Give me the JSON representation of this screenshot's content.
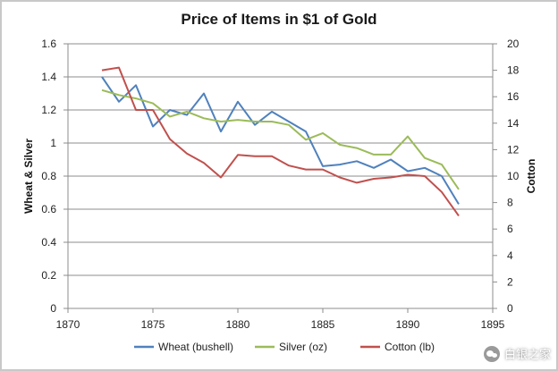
{
  "chart_data": {
    "type": "line",
    "title": "Price of Items in $1 of Gold",
    "ylabel_left": "Wheat & Silver",
    "ylabel_right": "Cotton",
    "xlim": [
      1870,
      1895
    ],
    "xticks": [
      1870,
      1875,
      1880,
      1885,
      1890,
      1895
    ],
    "ylim_left": [
      0,
      1.6
    ],
    "yticks_left": [
      "0",
      "0.2",
      "0.4",
      "0.6",
      "0.8",
      "1",
      "1.2",
      "1.4",
      "1.6"
    ],
    "ylim_right": [
      0,
      20
    ],
    "yticks_right": [
      "0",
      "2",
      "4",
      "6",
      "8",
      "10",
      "12",
      "14",
      "16",
      "18",
      "20"
    ],
    "grid": "horizontal",
    "legend_position": "bottom",
    "series": [
      {
        "name": "Wheat (bushell)",
        "axis": "left",
        "color": "#4f81bd",
        "x": [
          1872,
          1873,
          1874,
          1875,
          1876,
          1877,
          1878,
          1879,
          1880,
          1881,
          1882,
          1883,
          1884,
          1885,
          1886,
          1887,
          1888,
          1889,
          1890,
          1891,
          1892,
          1893
        ],
        "values": [
          1.4,
          1.25,
          1.35,
          1.1,
          1.2,
          1.17,
          1.3,
          1.07,
          1.25,
          1.11,
          1.19,
          1.13,
          1.07,
          0.86,
          0.87,
          0.89,
          0.85,
          0.9,
          0.83,
          0.85,
          0.8,
          0.63
        ]
      },
      {
        "name": "Silver (oz)",
        "axis": "left",
        "color": "#9bbb59",
        "x": [
          1872,
          1873,
          1874,
          1875,
          1876,
          1877,
          1878,
          1879,
          1880,
          1881,
          1882,
          1883,
          1884,
          1885,
          1886,
          1887,
          1888,
          1889,
          1890,
          1891,
          1892,
          1893
        ],
        "values": [
          1.32,
          1.29,
          1.27,
          1.24,
          1.16,
          1.19,
          1.15,
          1.13,
          1.14,
          1.13,
          1.13,
          1.11,
          1.02,
          1.06,
          0.99,
          0.97,
          0.93,
          0.93,
          1.04,
          0.91,
          0.87,
          0.72
        ]
      },
      {
        "name": "Cotton (lb)",
        "axis": "right",
        "color": "#c0504d",
        "x": [
          1872,
          1873,
          1874,
          1875,
          1876,
          1877,
          1878,
          1879,
          1880,
          1881,
          1882,
          1883,
          1884,
          1885,
          1886,
          1887,
          1888,
          1889,
          1890,
          1891,
          1892,
          1893
        ],
        "values": [
          18.0,
          18.2,
          15.0,
          15.0,
          12.8,
          11.7,
          11.0,
          9.9,
          11.6,
          11.5,
          11.5,
          10.8,
          10.5,
          10.5,
          9.9,
          9.5,
          9.8,
          9.9,
          10.1,
          10.0,
          8.8,
          7.0
        ]
      }
    ]
  },
  "watermark": {
    "text": "白银之家",
    "icon": "wechat-icon"
  }
}
